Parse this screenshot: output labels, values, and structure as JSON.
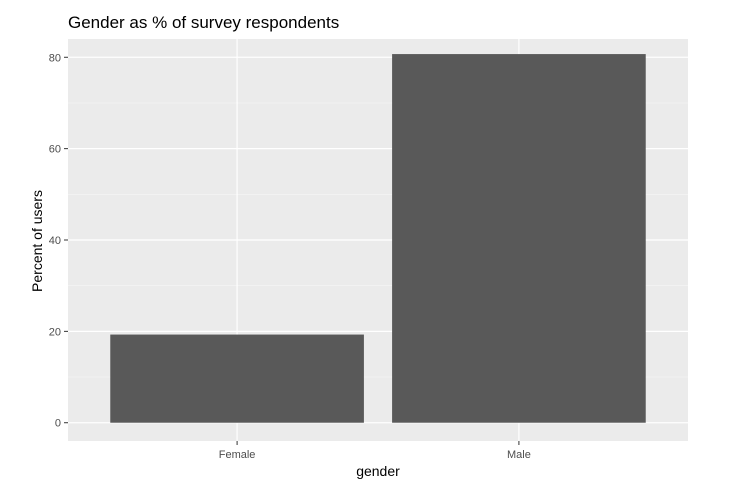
{
  "chart_data": {
    "type": "bar",
    "title": "Gender as % of survey respondents",
    "xlabel": "gender",
    "ylabel": "Percent of users",
    "categories": [
      "Female",
      "Male"
    ],
    "values": [
      19.3,
      80.7
    ],
    "ylim": [
      -4,
      84
    ],
    "yticks": [
      0,
      20,
      40,
      60,
      80
    ],
    "ytick_labels": [
      "0",
      "20",
      "40",
      "60",
      "80"
    ],
    "grid": true,
    "colors": {
      "bar": "#595959",
      "panel_background": "#ebebeb",
      "grid_major": "#ffffff",
      "grid_minor": "#f5f5f5",
      "tick_text": "#4d4d4d",
      "tick_mark": "#333333"
    }
  }
}
